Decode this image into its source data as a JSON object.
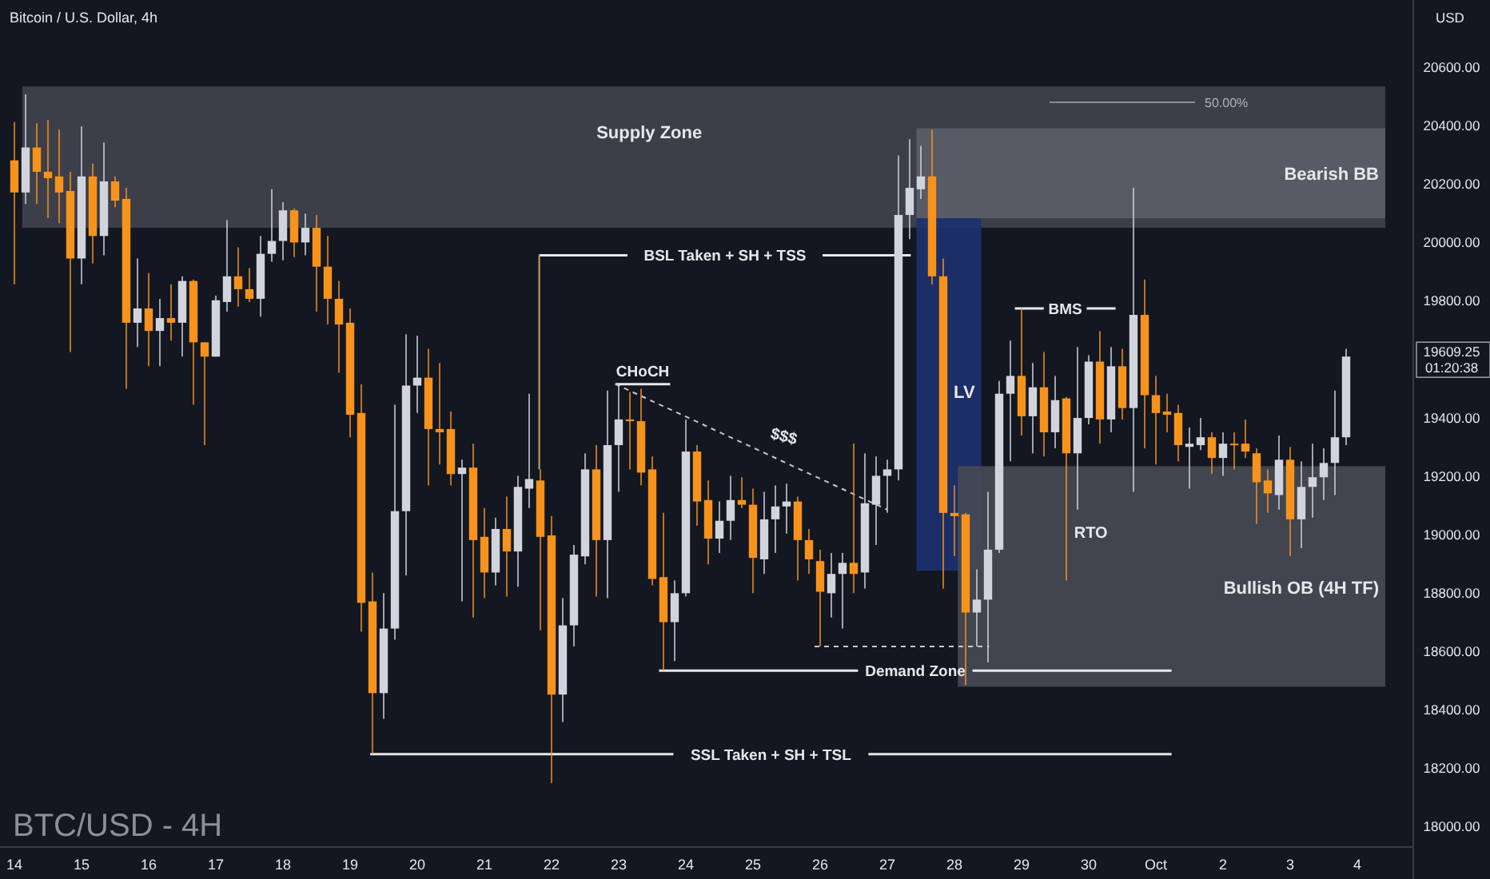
{
  "chart_data": {
    "type": "candlestick",
    "title": "Bitcoin / U.S. Dollar, 4h",
    "subtitle": "BTC/USD - 4H",
    "ylabel": "USD",
    "categories": [
      "14",
      null,
      null,
      null,
      null,
      null,
      "15",
      null,
      null,
      null,
      null,
      null,
      "16",
      null,
      null,
      null,
      null,
      null,
      "17",
      null,
      null,
      null,
      null,
      null,
      "18",
      null,
      null,
      null,
      null,
      null,
      "19",
      null,
      null,
      null,
      null,
      null,
      "20",
      null,
      null,
      null,
      null,
      null,
      "21",
      null,
      null,
      null,
      null,
      null,
      "22",
      null,
      null,
      null,
      null,
      null,
      "23",
      null,
      null,
      null,
      null,
      null,
      "24",
      null,
      null,
      null,
      null,
      null,
      "25",
      null,
      null,
      null,
      null,
      null,
      "26",
      null,
      null,
      null,
      null,
      null,
      "27",
      null,
      null,
      null,
      null,
      null,
      "28",
      null,
      null,
      null,
      null,
      null,
      "29",
      null,
      null,
      null,
      null,
      null,
      "30",
      null,
      null,
      null,
      null,
      null,
      "Oct",
      null,
      null,
      null,
      null,
      null,
      "2",
      null,
      null,
      null,
      null,
      null,
      "3",
      null,
      null,
      null,
      null,
      null,
      "4",
      null,
      null,
      null,
      null
    ],
    "ohlc": [
      [
        20281,
        20413,
        19857,
        20171
      ],
      [
        20171,
        20507,
        20132,
        20325
      ],
      [
        20325,
        20408,
        20132,
        20242
      ],
      [
        20242,
        20419,
        20083,
        20220
      ],
      [
        20226,
        20386,
        20066,
        20171
      ],
      [
        20176,
        20242,
        19625,
        19945
      ],
      [
        19945,
        20397,
        19857,
        20226
      ],
      [
        20226,
        20270,
        19928,
        20022
      ],
      [
        20022,
        20342,
        19956,
        20209
      ],
      [
        20209,
        20226,
        20121,
        20143
      ],
      [
        20149,
        20187,
        19499,
        19725
      ],
      [
        19725,
        19945,
        19642,
        19774
      ],
      [
        19774,
        19895,
        19576,
        19697
      ],
      [
        19697,
        19807,
        19576,
        19741
      ],
      [
        19741,
        19857,
        19664,
        19725
      ],
      [
        19725,
        19884,
        19609,
        19868
      ],
      [
        19868,
        19873,
        19444,
        19658
      ],
      [
        19658,
        19658,
        19306,
        19609
      ],
      [
        19609,
        19818,
        19609,
        19802
      ],
      [
        19796,
        20077,
        19763,
        19884
      ],
      [
        19884,
        19983,
        19780,
        19840
      ],
      [
        19840,
        19912,
        19796,
        19807
      ],
      [
        19807,
        20022,
        19746,
        19961
      ],
      [
        19961,
        20182,
        19934,
        20005
      ],
      [
        20005,
        20138,
        19939,
        20110
      ],
      [
        20110,
        20116,
        19950,
        20000
      ],
      [
        20000,
        20099,
        19956,
        20050
      ],
      [
        20050,
        20094,
        19763,
        19917
      ],
      [
        19917,
        20022,
        19719,
        19807
      ],
      [
        19807,
        19868,
        19554,
        19719
      ],
      [
        19725,
        19774,
        19333,
        19410
      ],
      [
        19416,
        19515,
        18667,
        18766
      ],
      [
        18771,
        18870,
        18248,
        18457
      ],
      [
        18457,
        18799,
        18369,
        18678
      ],
      [
        18678,
        19444,
        18640,
        19080
      ],
      [
        19080,
        19686,
        18860,
        19510
      ],
      [
        19510,
        19680,
        19416,
        19537
      ],
      [
        19537,
        19636,
        19168,
        19361
      ],
      [
        19361,
        19587,
        19240,
        19350
      ],
      [
        19361,
        19421,
        19168,
        19207
      ],
      [
        19207,
        19256,
        18771,
        19229
      ],
      [
        19229,
        19311,
        18716,
        18981
      ],
      [
        18992,
        19091,
        18782,
        18870
      ],
      [
        18870,
        19058,
        18826,
        19019
      ],
      [
        19019,
        19130,
        18788,
        18942
      ],
      [
        18942,
        19201,
        18821,
        19163
      ],
      [
        19157,
        19482,
        19091,
        19190
      ],
      [
        19185,
        19223,
        18672,
        18992
      ],
      [
        18997,
        19063,
        18149,
        18452
      ],
      [
        18452,
        18782,
        18358,
        18689
      ],
      [
        18689,
        18964,
        18617,
        18931
      ],
      [
        18925,
        19278,
        18898,
        19223
      ],
      [
        19223,
        19306,
        18788,
        18981
      ],
      [
        18981,
        19493,
        18782,
        19306
      ],
      [
        19306,
        19515,
        19146,
        19394
      ],
      [
        19394,
        19488,
        19223,
        19388
      ],
      [
        19388,
        19499,
        19168,
        19212
      ],
      [
        19223,
        19267,
        18826,
        18848
      ],
      [
        18854,
        19074,
        18534,
        18700
      ],
      [
        18700,
        18843,
        18567,
        18799
      ],
      [
        18799,
        19394,
        18788,
        19284
      ],
      [
        19284,
        19306,
        19030,
        19113
      ],
      [
        19118,
        19185,
        18898,
        18986
      ],
      [
        18986,
        19113,
        18937,
        19047
      ],
      [
        19047,
        19201,
        18981,
        19118
      ],
      [
        19118,
        19196,
        19091,
        19102
      ],
      [
        19102,
        19157,
        18799,
        18920
      ],
      [
        18915,
        19146,
        18865,
        19052
      ],
      [
        19052,
        19168,
        18937,
        19096
      ],
      [
        19096,
        19174,
        19003,
        19113
      ],
      [
        19113,
        19130,
        18843,
        18981
      ],
      [
        18981,
        19019,
        18865,
        18915
      ],
      [
        18909,
        18948,
        18617,
        18804
      ],
      [
        18799,
        18937,
        18716,
        18865
      ],
      [
        18865,
        18937,
        18678,
        18903
      ],
      [
        18903,
        19311,
        18799,
        18865
      ],
      [
        18870,
        19278,
        18815,
        19107
      ],
      [
        19102,
        19267,
        18964,
        19201
      ],
      [
        19201,
        19256,
        19074,
        19223
      ],
      [
        19223,
        20298,
        19185,
        20094
      ],
      [
        20094,
        20353,
        20011,
        20187
      ],
      [
        20182,
        20331,
        20149,
        20226
      ],
      [
        20226,
        20386,
        19857,
        19884
      ],
      [
        19884,
        19945,
        18815,
        19074
      ],
      [
        19074,
        19168,
        18926,
        19063
      ],
      [
        19069,
        19074,
        18485,
        18733
      ],
      [
        18733,
        18881,
        18617,
        18777
      ],
      [
        18777,
        19146,
        18562,
        18948
      ],
      [
        18948,
        19526,
        18937,
        19482
      ],
      [
        19482,
        19664,
        19251,
        19543
      ],
      [
        19543,
        19774,
        19339,
        19405
      ],
      [
        19405,
        19587,
        19278,
        19504
      ],
      [
        19504,
        19625,
        19267,
        19350
      ],
      [
        19350,
        19543,
        19295,
        19460
      ],
      [
        19466,
        19471,
        18843,
        19278
      ],
      [
        19278,
        19642,
        19085,
        19399
      ],
      [
        19399,
        19614,
        19377,
        19592
      ],
      [
        19592,
        19697,
        19311,
        19394
      ],
      [
        19394,
        19642,
        19350,
        19576
      ],
      [
        19576,
        19636,
        19394,
        19433
      ],
      [
        19433,
        20187,
        19146,
        19752
      ],
      [
        19752,
        19873,
        19295,
        19477
      ],
      [
        19477,
        19543,
        19240,
        19416
      ],
      [
        19421,
        19482,
        19350,
        19410
      ],
      [
        19416,
        19444,
        19251,
        19306
      ],
      [
        19300,
        19366,
        19157,
        19311
      ],
      [
        19306,
        19399,
        19289,
        19333
      ],
      [
        19333,
        19350,
        19207,
        19262
      ],
      [
        19262,
        19350,
        19201,
        19311
      ],
      [
        19311,
        19350,
        19223,
        19306
      ],
      [
        19311,
        19394,
        19262,
        19284
      ],
      [
        19278,
        19295,
        19036,
        19179
      ],
      [
        19185,
        19223,
        19074,
        19141
      ],
      [
        19135,
        19339,
        19085,
        19256
      ],
      [
        19256,
        19300,
        18926,
        19052
      ],
      [
        19052,
        19251,
        18953,
        19163
      ],
      [
        19163,
        19311,
        19058,
        19196
      ],
      [
        19196,
        19295,
        19118,
        19245
      ],
      [
        19245,
        19493,
        19135,
        19333
      ],
      [
        19333,
        19636,
        19306,
        19609.25
      ],
      null,
      null,
      null,
      null,
      null
    ],
    "ylim": [
      17930,
      20830
    ],
    "yticks": [
      {
        "value": 18000,
        "label": "18000.00"
      },
      {
        "value": 18200,
        "label": "18200.00"
      },
      {
        "value": 18400,
        "label": "18400.00"
      },
      {
        "value": 18600,
        "label": "18600.00"
      },
      {
        "value": 18800,
        "label": "18800.00"
      },
      {
        "value": 19000,
        "label": "19000.00"
      },
      {
        "value": 19200,
        "label": "19200.00"
      },
      {
        "value": 19400,
        "label": "19400.00"
      },
      {
        "value": 19800,
        "label": "19800.00"
      },
      {
        "value": 20000,
        "label": "20000.00"
      },
      {
        "value": 20200,
        "label": "20200.00"
      },
      {
        "value": 20400,
        "label": "20400.00"
      },
      {
        "value": 20600,
        "label": "20600.00"
      }
    ],
    "bands": [
      {
        "axis": "y",
        "from": 20050,
        "to": 20534,
        "label": "Supply Zone",
        "color": "#41444e"
      },
      {
        "axis": "y",
        "from": 20083,
        "to": 20391,
        "label": "Bearish BB",
        "color": "#5b5e68"
      },
      {
        "axis": "y",
        "from": 18876,
        "to": 20083,
        "label": "LV",
        "color": "#1d3170"
      },
      {
        "axis": "y",
        "from": 18479,
        "to": 19234,
        "label": "Bullish OB (4H TF)",
        "color": "#474a54"
      }
    ],
    "ref_lines": [
      {
        "axis": "y",
        "value": 20480,
        "label": null,
        "color": "#8a8d96"
      },
      {
        "axis": "y",
        "value": 19956,
        "label": "BSL Taken + SH + TSS",
        "color": "#e8e8ea"
      },
      {
        "axis": "y",
        "value": 19515,
        "label": "CHoCH",
        "color": "#e8e8ea"
      },
      {
        "axis": "y",
        "value": 19774,
        "label": "BMS",
        "color": "#e8e8ea"
      },
      {
        "axis": "y",
        "value": 18617,
        "label": null,
        "color": "#c8c8cc",
        "line_style": "dashed"
      },
      {
        "axis": "y",
        "value": 18534,
        "label": "Demand Zone",
        "color": "#e8e8ea"
      },
      {
        "axis": "y",
        "value": 18248,
        "label": "SSL Taken + SH + TSL",
        "color": "#e8e8ea"
      }
    ],
    "annotations": [
      "$$$",
      "RTO",
      "19609.25",
      "01:20:38",
      "50.00%"
    ]
  }
}
